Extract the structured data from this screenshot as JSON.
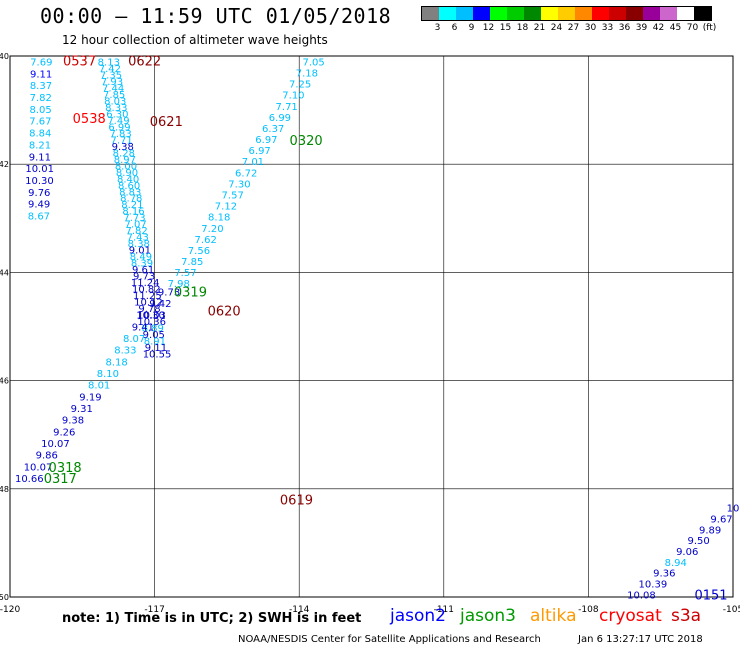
{
  "header": {
    "title": "00:00 – 11:59 UTC 01/05/2018",
    "subtitle": "12 hour collection of altimeter wave heights"
  },
  "legend": {
    "colors": [
      "#808080",
      "#00ffff",
      "#00bfff",
      "#0000ff",
      "#00ff00",
      "#00cc00",
      "#008800",
      "#ffff00",
      "#ffcc00",
      "#ff8800",
      "#ff0000",
      "#cc0000",
      "#880000",
      "#990099",
      "#cc66cc",
      "#ffffff",
      "#000000"
    ],
    "labels": [
      "3",
      "6",
      "9",
      "12",
      "15",
      "18",
      "21",
      "24",
      "27",
      "30",
      "33",
      "36",
      "39",
      "42",
      "45",
      "70",
      "(ft)"
    ]
  },
  "chart_data": {
    "type": "scatter",
    "xlim": [
      -120,
      -105
    ],
    "ylim": [
      -50,
      -40
    ],
    "x_ticks": [
      "-120",
      "-117",
      "-114",
      "-111",
      "-108",
      "-105"
    ],
    "y_ticks": [
      "-40",
      "-42",
      "-44",
      "-46",
      "-48",
      "-50"
    ],
    "passes": [
      {
        "label": "0537",
        "color": "#cc0000",
        "lx": -118.9,
        "ly": -40.08
      },
      {
        "label": "0538",
        "color": "#ff0000",
        "lx": -118.7,
        "ly": -41.15
      },
      {
        "label": "0622",
        "color": "#880000",
        "lx": -117.55,
        "ly": -40.08
      },
      {
        "label": "0621",
        "color": "#880000",
        "lx": -117.1,
        "ly": -41.2
      },
      {
        "label": "0320",
        "color": "#008800",
        "lx": -114.2,
        "ly": -41.55
      },
      {
        "label": "0319",
        "color": "#008800",
        "lx": -116.6,
        "ly": -44.35
      },
      {
        "label": "0620",
        "color": "#880000",
        "lx": -115.9,
        "ly": -44.7
      },
      {
        "label": "0318",
        "color": "#008800",
        "lx": -119.2,
        "ly": -47.6
      },
      {
        "label": "0317",
        "color": "#008800",
        "lx": -119.3,
        "ly": -47.8
      },
      {
        "label": "0619",
        "color": "#880000",
        "lx": -114.4,
        "ly": -48.2
      },
      {
        "label": "0151",
        "color": "#0000cc",
        "lx": -105.8,
        "ly": -49.95
      }
    ],
    "tracks": [
      {
        "name": "0537",
        "x0": -119.35,
        "x1": -119.4,
        "y0": -40.1,
        "y1": -42.95,
        "points": [
          [
            "7.69",
            "#00bfff"
          ],
          [
            "9.11",
            "#0000ff"
          ],
          [
            "8.37",
            "#00bfff"
          ],
          [
            "7.82",
            "#00bfff"
          ],
          [
            "8.05",
            "#00bfff"
          ],
          [
            "7.67",
            "#00bfff"
          ],
          [
            "8.84",
            "#00bfff"
          ],
          [
            "8.21",
            "#00bfff"
          ],
          [
            "9.11",
            "#0000cc"
          ],
          [
            "10.01",
            "#0000cc"
          ],
          [
            "10.30",
            "#0000cc"
          ],
          [
            "9.76",
            "#0000cc"
          ],
          [
            "9.49",
            "#0000cc"
          ],
          [
            "8.67",
            "#00bfff"
          ]
        ]
      },
      {
        "name": "0622",
        "x0": -117.95,
        "x1": -116.95,
        "y0": -40.1,
        "y1": -45.5,
        "points": [
          [
            "8.13",
            "#00bfff"
          ],
          [
            "7.42",
            "#00bfff"
          ],
          [
            "7.35",
            "#00bfff"
          ],
          [
            "7.93",
            "#00bfff"
          ],
          [
            "7.44",
            "#00bfff"
          ],
          [
            "7.85",
            "#00bfff"
          ],
          [
            "8.03",
            "#00bfff"
          ],
          [
            "8.33",
            "#00bfff"
          ],
          [
            "6.30",
            "#00bfff"
          ],
          [
            "7.49",
            "#00bfff"
          ],
          [
            "6.99",
            "#00bfff"
          ],
          [
            "7.83",
            "#00bfff"
          ],
          [
            "7.71",
            "#00bfff"
          ],
          [
            "9.38",
            "#0000cc"
          ],
          [
            "8.28",
            "#00bfff"
          ],
          [
            "8.97",
            "#00bfff"
          ],
          [
            "8.00",
            "#00bfff"
          ],
          [
            "8.90",
            "#00bfff"
          ],
          [
            "8.40",
            "#00bfff"
          ],
          [
            "8.60",
            "#00bfff"
          ],
          [
            "8.83",
            "#00bfff"
          ],
          [
            "8.78",
            "#00bfff"
          ],
          [
            "8.21",
            "#00bfff"
          ],
          [
            "8.16",
            "#00bfff"
          ],
          [
            "7.73",
            "#00bfff"
          ],
          [
            "7.07",
            "#00bfff"
          ],
          [
            "7.82",
            "#00bfff"
          ],
          [
            "7.43",
            "#00bfff"
          ],
          [
            "8.38",
            "#00bfff"
          ],
          [
            "9.01",
            "#0000cc"
          ],
          [
            "8.49",
            "#00bfff"
          ],
          [
            "8.39",
            "#00bfff"
          ],
          [
            "9.61",
            "#0000cc"
          ],
          [
            "9.73",
            "#0000cc"
          ],
          [
            "11.24",
            "#0000cc"
          ],
          [
            "10.82",
            "#0000cc"
          ],
          [
            "11.25",
            "#0000cc"
          ],
          [
            "10.12",
            "#0000cc"
          ],
          [
            "9.78",
            "#0000cc"
          ],
          [
            "10.30",
            "#0000cc"
          ],
          [
            "10.36",
            "#0000cc"
          ],
          [
            "8.89",
            "#00bfff"
          ],
          [
            "9.05",
            "#0000cc"
          ],
          [
            "8.91",
            "#00bfff"
          ],
          [
            "9.11",
            "#0000cc"
          ],
          [
            "10.55",
            "#0000cc"
          ]
        ]
      },
      {
        "name": "0320",
        "x0": -113.7,
        "x1": -116.5,
        "y0": -40.1,
        "y1": -44.2,
        "points": [
          [
            "7.05",
            "#00bfff"
          ],
          [
            "7.18",
            "#00bfff"
          ],
          [
            "7.25",
            "#00bfff"
          ],
          [
            "7.10",
            "#00bfff"
          ],
          [
            "7.71",
            "#00bfff"
          ],
          [
            "6.99",
            "#00bfff"
          ],
          [
            "6.37",
            "#00bfff"
          ],
          [
            "6.97",
            "#00bfff"
          ],
          [
            "6.97",
            "#00bfff"
          ],
          [
            "7.01",
            "#00bfff"
          ],
          [
            "6.72",
            "#00bfff"
          ],
          [
            "7.30",
            "#00bfff"
          ],
          [
            "7.57",
            "#00bfff"
          ],
          [
            "7.12",
            "#00bfff"
          ],
          [
            "8.18",
            "#00bfff"
          ],
          [
            "7.20",
            "#00bfff"
          ],
          [
            "7.62",
            "#00bfff"
          ],
          [
            "7.56",
            "#00bfff"
          ],
          [
            "7.85",
            "#00bfff"
          ],
          [
            "7.57",
            "#00bfff"
          ],
          [
            "7.98",
            "#00bfff"
          ]
        ]
      },
      {
        "name": "0319",
        "x0": -116.7,
        "x1": -119.6,
        "y0": -44.35,
        "y1": -47.8,
        "points": [
          [
            "9.73",
            "#0000cc"
          ],
          [
            "9.42",
            "#0000cc"
          ],
          [
            "10.03",
            "#0000cc"
          ],
          [
            "9.41",
            "#0000cc"
          ],
          [
            "8.07",
            "#00bfff"
          ],
          [
            "8.33",
            "#00bfff"
          ],
          [
            "8.18",
            "#00bfff"
          ],
          [
            "8.10",
            "#00bfff"
          ],
          [
            "8.01",
            "#00bfff"
          ],
          [
            "9.19",
            "#0000cc"
          ],
          [
            "9.31",
            "#0000cc"
          ],
          [
            "9.38",
            "#0000cc"
          ],
          [
            "9.26",
            "#0000cc"
          ],
          [
            "10.07",
            "#0000cc"
          ],
          [
            "9.86",
            "#0000cc"
          ],
          [
            "10.07",
            "#0000cc"
          ],
          [
            "10.66",
            "#0000cc"
          ]
        ]
      },
      {
        "name": "0151",
        "x0": -105.0,
        "x1": -106.9,
        "y0": -48.35,
        "y1": -49.95,
        "points": [
          [
            "10",
            "#0000cc"
          ],
          [
            "9.67",
            "#0000cc"
          ],
          [
            "9.89",
            "#0000cc"
          ],
          [
            "9.50",
            "#0000cc"
          ],
          [
            "9.06",
            "#0000cc"
          ],
          [
            "8.94",
            "#00bfff"
          ],
          [
            "9.36",
            "#0000cc"
          ],
          [
            "10.39",
            "#0000cc"
          ],
          [
            "10.08",
            "#0000cc"
          ]
        ]
      }
    ]
  },
  "footer": {
    "note": "note:  1) Time is in UTC;  2) SWH is in feet",
    "satellites": [
      {
        "name": "jason2",
        "color": "#0000ff"
      },
      {
        "name": "jason3",
        "color": "#009900"
      },
      {
        "name": "altika",
        "color": "#ff9900"
      },
      {
        "name": "cryosat",
        "color": "#ff0000"
      },
      {
        "name": "s3a",
        "color": "#cc0000"
      }
    ],
    "credit": "NOAA/NESDIS Center for Satellite Applications and Research",
    "timestamp": "Jan  6 13:27:17 UTC 2018"
  }
}
